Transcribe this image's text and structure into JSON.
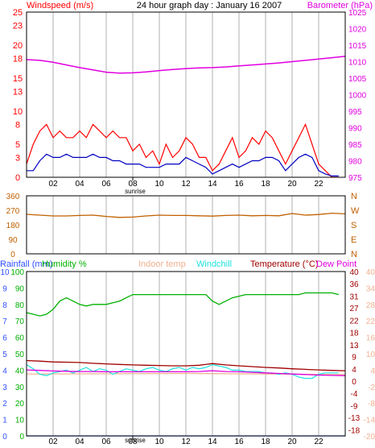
{
  "colors": {
    "windspeed": "#ff0000",
    "windgust": "#ff0000",
    "wind_avg": "#0000c0",
    "barometer": "#e000e0",
    "wind_dir": "#c06000",
    "rainfall": "#3050ff",
    "humidity": "#00b000",
    "indoor_temp": "#f0b090",
    "windchill": "#20e0e0",
    "temperature": "#a00000",
    "dew_point": "#e000e0",
    "frame": "#000000",
    "grid": "#d8d8d8"
  },
  "chart_data": [
    {
      "type": "line",
      "title": "24 hour graph day : January 16 2007",
      "y_left_label": "Windspeed (m/s)",
      "y_right_label": "Barometer (hPa)",
      "x_ticks": [
        "02",
        "04",
        "06",
        "08",
        "10",
        "12",
        "14",
        "16",
        "18",
        "20",
        "22"
      ],
      "x_ticks_hours": [
        2,
        4,
        6,
        8,
        10,
        12,
        14,
        16,
        18,
        20,
        22
      ],
      "xlim": [
        0,
        24
      ],
      "sunrise_label": "sunrise",
      "sunrise_hour": 8.0,
      "ylim_left": [
        0,
        25
      ],
      "y_left_ticks": [
        0,
        3,
        5,
        8,
        10,
        13,
        15,
        18,
        20,
        23,
        25
      ],
      "ylim_right": [
        975,
        1025
      ],
      "y_right_ticks": [
        975,
        980,
        985,
        990,
        995,
        1000,
        1005,
        1010,
        1015,
        1020,
        1025
      ],
      "grid": true,
      "series": [
        {
          "name": "Windspeed (m/s)",
          "axis": "left",
          "role": "gust",
          "x": [
            0,
            0.5,
            1,
            1.5,
            2,
            2.5,
            3,
            3.5,
            4,
            4.5,
            5,
            5.5,
            6,
            6.5,
            7,
            7.5,
            8,
            8.5,
            9,
            9.5,
            10,
            10.5,
            11,
            11.5,
            12,
            12.5,
            13,
            13.5,
            14,
            14.5,
            15,
            15.5,
            16,
            16.5,
            17,
            17.5,
            18,
            18.5,
            19,
            19.5,
            20,
            20.5,
            21,
            21.5,
            22,
            22.5,
            23,
            23.5
          ],
          "values": [
            2,
            5,
            7,
            8,
            6,
            7,
            6,
            6,
            7,
            6,
            8,
            7,
            6,
            7,
            6,
            6,
            4,
            5,
            3,
            4,
            2,
            5,
            3,
            4,
            6,
            5,
            3,
            3,
            1,
            2,
            4,
            6,
            3,
            4,
            6,
            5,
            7,
            6,
            4,
            2,
            4,
            6,
            8,
            5,
            2,
            1,
            0,
            0
          ]
        },
        {
          "name": "Wind average",
          "axis": "left",
          "role": "avg",
          "x": [
            0,
            0.5,
            1,
            1.5,
            2,
            2.5,
            3,
            3.5,
            4,
            4.5,
            5,
            5.5,
            6,
            6.5,
            7,
            7.5,
            8,
            8.5,
            9,
            9.5,
            10,
            10.5,
            11,
            11.5,
            12,
            12.5,
            13,
            13.5,
            14,
            14.5,
            15,
            15.5,
            16,
            16.5,
            17,
            17.5,
            18,
            18.5,
            19,
            19.5,
            20,
            20.5,
            21,
            21.5,
            22,
            22.5,
            23,
            23.5
          ],
          "values": [
            1,
            1,
            2.5,
            3.5,
            3,
            3,
            3.5,
            3,
            3,
            3,
            3.5,
            3,
            3,
            2.5,
            2.5,
            2,
            2,
            2,
            1.5,
            1.5,
            1.5,
            2,
            2,
            2,
            3,
            2.5,
            2,
            1.5,
            0.5,
            1,
            1.5,
            2,
            1.5,
            2,
            2.5,
            2.5,
            3,
            3,
            2.5,
            1,
            2,
            3,
            3.5,
            3,
            1,
            0.5,
            0.2,
            0.2
          ]
        },
        {
          "name": "Barometer (hPa)",
          "axis": "right",
          "role": "baro",
          "x": [
            0,
            1,
            2,
            3,
            4,
            5,
            6,
            7,
            8,
            9,
            10,
            11,
            12,
            13,
            14,
            15,
            16,
            17,
            18,
            19,
            20,
            21,
            22,
            23,
            24
          ],
          "values": [
            1010.6,
            1010.4,
            1009.8,
            1009.0,
            1008.2,
            1007.5,
            1006.8,
            1006.5,
            1006.6,
            1006.9,
            1007.3,
            1007.6,
            1007.9,
            1008.1,
            1008.2,
            1008.4,
            1008.7,
            1009.0,
            1009.3,
            1009.6,
            1010.0,
            1010.4,
            1010.8,
            1011.2,
            1011.6
          ]
        }
      ]
    },
    {
      "type": "line",
      "xlim": [
        0,
        24
      ],
      "ylim_left": [
        0,
        360
      ],
      "y_left_ticks": [
        0,
        90,
        180,
        270,
        360
      ],
      "y_right_ticks": [
        "N",
        "W",
        "S",
        "E",
        "N"
      ],
      "y_right_values": [
        360,
        270,
        180,
        90,
        0
      ],
      "grid": true,
      "series": [
        {
          "name": "Wind direction",
          "axis": "left",
          "role": "dir",
          "x": [
            0,
            1,
            2,
            3,
            4,
            5,
            6,
            7,
            8,
            9,
            10,
            11,
            12,
            13,
            14,
            15,
            16,
            17,
            18,
            19,
            20,
            21,
            22,
            23,
            24
          ],
          "values": [
            245,
            240,
            235,
            235,
            238,
            240,
            232,
            226,
            228,
            235,
            240,
            238,
            238,
            236,
            234,
            238,
            240,
            236,
            238,
            236,
            250,
            240,
            244,
            252,
            248
          ]
        }
      ]
    },
    {
      "type": "line",
      "x_ticks": [
        "02",
        "04",
        "06",
        "08",
        "10",
        "12",
        "14",
        "16",
        "18",
        "20",
        "22"
      ],
      "x_ticks_hours": [
        2,
        4,
        6,
        8,
        10,
        12,
        14,
        16,
        18,
        20,
        22
      ],
      "xlim": [
        0,
        24
      ],
      "sunrise_label": "sunrise",
      "sunrise_hour": 8.0,
      "legend": [
        "Rainfall (mm)",
        "Humidity %",
        "Indoor temp",
        "Windchill",
        "Temperature (°C)",
        "Dew Point"
      ],
      "axis_left_1_label": "Rainfall (mm)",
      "axis_left_1_ticks": [
        0,
        1,
        2,
        3,
        4,
        5,
        6,
        7,
        8,
        9,
        10
      ],
      "ylim_left_1": [
        0,
        10
      ],
      "axis_left_2_label": "Humidity %",
      "axis_left_2_ticks": [
        0,
        10,
        20,
        30,
        40,
        50,
        60,
        70,
        80,
        90,
        100
      ],
      "ylim_left_2": [
        0,
        100
      ],
      "axis_right_1_ticks": [
        40,
        36,
        31,
        27,
        22,
        18,
        13,
        9,
        4,
        0,
        -4,
        -9,
        -13,
        -18
      ],
      "axis_right_1_values": [
        40,
        35.6,
        31.1,
        26.7,
        22.2,
        17.8,
        13.3,
        8.9,
        4.4,
        0,
        -4.4,
        -8.9,
        -13.3,
        -17.8
      ],
      "axis_right_2_ticks": [
        40,
        34,
        28,
        22,
        16,
        10,
        4,
        -2,
        -8,
        -14,
        -20
      ],
      "axis_right_2_values": [
        40,
        34,
        28,
        22,
        16,
        10,
        4,
        -2,
        -8,
        -14,
        -20
      ],
      "ylim_right": [
        -20,
        40
      ],
      "grid": true,
      "series": [
        {
          "name": "Humidity %",
          "axis": "left2",
          "role": "hum",
          "x": [
            0,
            0.5,
            1,
            1.5,
            2,
            2.5,
            3,
            3.5,
            4,
            4.5,
            5,
            5.5,
            6,
            6.5,
            7,
            7.5,
            8,
            8.5,
            9,
            9.5,
            10,
            10.5,
            11,
            11.5,
            12,
            12.5,
            13,
            13.5,
            14,
            14.5,
            15,
            15.5,
            16,
            16.5,
            17,
            17.5,
            18,
            18.5,
            19,
            19.5,
            20,
            20.5,
            21,
            21.5,
            22,
            22.5,
            23,
            23.5
          ],
          "values": [
            75,
            74,
            73,
            74,
            77,
            82,
            84,
            82,
            80,
            79,
            80,
            80,
            80,
            81,
            82,
            84,
            86,
            86,
            86,
            86,
            86,
            86,
            86,
            86,
            86,
            86,
            86,
            86,
            82,
            80,
            82,
            84,
            85,
            86,
            86,
            86,
            86,
            86,
            86,
            86,
            86,
            86,
            87,
            87,
            87,
            87,
            87,
            86
          ]
        },
        {
          "name": "Temperature (°C)",
          "axis": "right",
          "role": "temp",
          "x": [
            0,
            1,
            2,
            3,
            4,
            5,
            6,
            7,
            8,
            9,
            10,
            11,
            12,
            13,
            14,
            15,
            16,
            17,
            18,
            19,
            20,
            21,
            22,
            23,
            24
          ],
          "values": [
            7.5,
            7.3,
            7.0,
            6.9,
            6.8,
            6.5,
            6.3,
            6.1,
            5.9,
            5.8,
            5.7,
            5.6,
            5.6,
            5.8,
            6.4,
            5.9,
            5.6,
            5.3,
            5.0,
            4.8,
            4.5,
            4.3,
            4.1,
            3.9,
            3.8
          ]
        },
        {
          "name": "Windchill",
          "axis": "right",
          "role": "chill",
          "x": [
            0,
            0.5,
            1,
            1.5,
            2,
            2.5,
            3,
            3.5,
            4,
            4.5,
            5,
            5.5,
            6,
            6.5,
            7,
            7.5,
            8,
            8.5,
            9,
            9.5,
            10,
            10.5,
            11,
            11.5,
            12,
            12.5,
            13,
            13.5,
            14,
            14.5,
            15,
            15.5,
            16,
            16.5,
            17,
            17.5,
            18,
            18.5,
            19,
            19.5,
            20,
            20.5,
            21,
            21.5,
            22,
            22.5,
            23,
            23.5
          ],
          "values": [
            6.0,
            4.5,
            2.5,
            2.0,
            3.0,
            3.5,
            4.0,
            3.0,
            4.0,
            5.0,
            3.5,
            4.5,
            4.0,
            2.5,
            3.5,
            4.5,
            4.0,
            3.5,
            4.5,
            5.0,
            4.0,
            3.5,
            4.5,
            5.0,
            4.0,
            5.0,
            4.5,
            5.0,
            6.0,
            5.5,
            5.0,
            4.0,
            4.0,
            3.5,
            3.5,
            3.5,
            3.0,
            3.0,
            2.5,
            3.0,
            2.5,
            1.5,
            1.0,
            1.0,
            2.5,
            3.0,
            3.0,
            3.0
          ]
        },
        {
          "name": "Dew Point",
          "axis": "right",
          "role": "dew",
          "x": [
            0,
            1,
            2,
            3,
            4,
            5,
            6,
            7,
            8,
            9,
            10,
            11,
            12,
            13,
            14,
            15,
            16,
            17,
            18,
            19,
            20,
            21,
            22,
            23,
            24
          ],
          "values": [
            4.1,
            3.9,
            3.7,
            3.6,
            3.5,
            3.5,
            3.4,
            3.4,
            3.4,
            3.4,
            3.4,
            3.4,
            3.4,
            3.5,
            3.8,
            3.5,
            3.4,
            3.2,
            3.0,
            2.8,
            2.6,
            2.4,
            2.2,
            2.1,
            2.0
          ]
        },
        {
          "name": "Indoor temp",
          "axis": "right",
          "role": "indoor",
          "x": [
            0,
            12,
            24
          ],
          "values": [
            2.6,
            2.8,
            2.4
          ]
        },
        {
          "name": "Rainfall (mm)",
          "axis": "left1",
          "role": "rain",
          "x": [
            0,
            24
          ],
          "values": [
            0,
            0
          ]
        }
      ]
    }
  ]
}
